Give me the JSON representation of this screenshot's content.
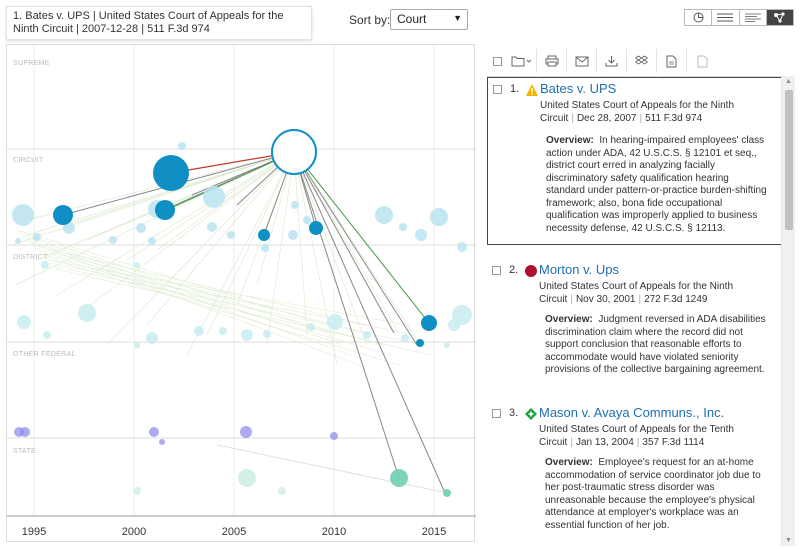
{
  "header": {
    "selected_case_title": "1. Bates v. UPS | United States Court of Appeals for the Ninth Circuit | 2007-12-28 | 511 F.3d 974",
    "sort_label": "Sort by:",
    "sort_value": "Court",
    "view_icons": [
      "pie-chart-icon",
      "list-icon",
      "detail-list-icon",
      "network-graph-icon"
    ]
  },
  "toolbar": {
    "icons": [
      "select-all-checkbox",
      "folder-icon",
      "print-icon",
      "email-icon",
      "download-icon",
      "dropbox-icon",
      "document-icon",
      "blank-document-icon"
    ]
  },
  "chart_data": {
    "type": "scatter",
    "tiers": [
      "SUPREME",
      "CIRCUIT",
      "DISTRICT",
      "OTHER FEDERAL",
      "STATE"
    ],
    "x_ticks": [
      "1995",
      "2000",
      "2005",
      "2010",
      "2015"
    ],
    "xlim": [
      1994,
      2017
    ],
    "colors": {
      "primary": "#0f8fc4",
      "light": "#b9e4f2",
      "federal_light": "#c7ecf0",
      "state": "#8b86e8",
      "state_green": "#6fcfb4",
      "red_edge": "#c0392b",
      "green_edge": "#3a9a3a"
    }
  },
  "results": [
    {
      "number": "1.",
      "icon": "warning-triangle-icon",
      "icon_color": "#f5b400",
      "case_name": "Bates v. UPS",
      "court": "United States Court of Appeals for the Ninth Circuit",
      "date": "Dec 28, 2007",
      "citation": "511 F.3d 974",
      "overview_label": "Overview:",
      "overview": "In hearing-impaired employees' class action under ADA, 42 U.S.C.S. § 12101 et seq., district court erred in analyzing facially discriminatory safety qualification hearing standard under pattern-or-practice burden-shifting framework; also, bona fide occupational qualification was improperly applied to business necessity defense, 42 U.S.C.S. § 12113."
    },
    {
      "number": "2.",
      "icon": "red-stop-icon",
      "icon_color": "#b0102e",
      "case_name": "Morton v. Ups",
      "court": "United States Court of Appeals for the Ninth Circuit",
      "date": "Nov 30, 2001",
      "citation": "272 F.3d 1249",
      "overview_label": "Overview:",
      "overview": "Judgment reversed in ADA disabilities discrimination claim where the record did not support conclusion that reasonable efforts to accommodate would have violated seniority provisions of the collective bargaining agreement."
    },
    {
      "number": "3.",
      "icon": "green-diamond-icon",
      "icon_color": "#1e9e3e",
      "case_name": "Mason v. Avaya Communs., Inc.",
      "court": "United States Court of Appeals for the Tenth Circuit",
      "date": "Jan 13, 2004",
      "citation": "357 F.3d 1114",
      "overview_label": "Overview:",
      "overview": "Employee's request for an at-home accommodation of service coordinator job due to her post-traumatic stress disorder was unreasonable because the employee's physical attendance at employer's workplace was an essential function of her job."
    }
  ]
}
